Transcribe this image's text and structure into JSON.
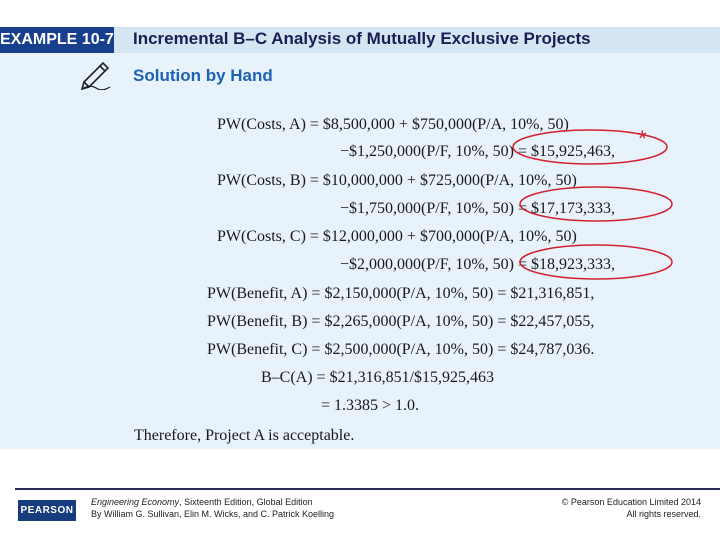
{
  "header": {
    "example_label": "EXAMPLE 10-7",
    "title": "Incremental B–C Analysis of Mutually Exclusive Projects"
  },
  "section": {
    "subtitle": "Solution by Hand",
    "icon": "pencil-writing-icon"
  },
  "equations": [
    "PW(Costs, A) = $8,500,000 + $750,000(P/A, 10%, 50)",
    "−$1,250,000(P/F, 10%, 50) = $15,925,463,",
    "PW(Costs, B) = $10,000,000 + $725,000(P/A, 10%, 50)",
    "−$1,750,000(P/F, 10%, 50) = $17,173,333,",
    "PW(Costs, C) = $12,000,000 + $700,000(P/A, 10%, 50)",
    "−$2,000,000(P/F, 10%, 50) = $18,923,333,",
    "PW(Benefit, A) = $2,150,000(P/A, 10%, 50) = $21,316,851,",
    "PW(Benefit, B) = $2,265,000(P/A, 10%, 50) = $22,457,055,",
    "PW(Benefit, C) = $2,500,000(P/A, 10%, 50) = $24,787,036.",
    "B–C(A) = $21,316,851/$15,925,463",
    "= 1.3385 > 1.0.",
    "Therefore, Project A is acceptable."
  ],
  "annotation": {
    "asterisk": "*",
    "color": "#d32030"
  },
  "footer": {
    "logo_text": "PEARSON",
    "book_title": "Engineering Economy",
    "edition": ", Sixteenth Edition, Global Edition",
    "authors": "By William G. Sullivan, Elin M. Wicks, and C. Patrick Koelling",
    "copyright": "© Pearson Education Limited 2014",
    "rights": "All rights reserved."
  },
  "colors": {
    "tab": "#173f8e",
    "title_bg": "#d5e5f1",
    "panel": "#e7f2fa",
    "subtitle": "#1f62b1"
  }
}
